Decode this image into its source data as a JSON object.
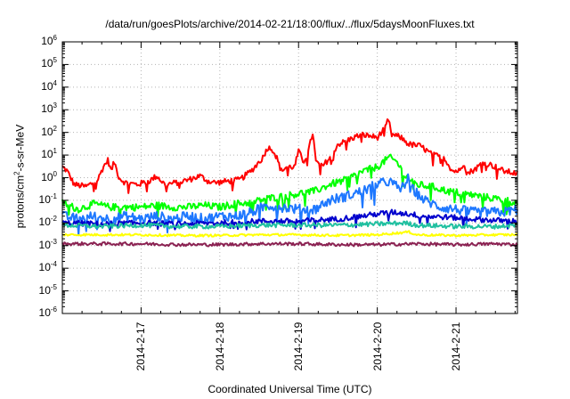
{
  "chart_data": {
    "type": "line",
    "title": "/data/run/goesPlots/archive/2014-02-21/18:00/flux/../flux/5daysMoonFluxes.txt",
    "xlabel": "Coordinated Universal Time (UTC)",
    "ylabel": {
      "pre": "protons/cm",
      "sup": "2",
      "post": "-s-sr-MeV"
    },
    "yscale": "log",
    "ylim": [
      1e-06,
      1000000.0
    ],
    "xlim": [
      16.0,
      21.78
    ],
    "y_ticks": [
      {
        "base": "10",
        "exp": "-6"
      },
      {
        "base": "10",
        "exp": "-5"
      },
      {
        "base": "10",
        "exp": "-4"
      },
      {
        "base": "10",
        "exp": "-3"
      },
      {
        "base": "10",
        "exp": "-2"
      },
      {
        "base": "10",
        "exp": "-1"
      },
      {
        "base": "10",
        "exp": "0"
      },
      {
        "base": "10",
        "exp": "1"
      },
      {
        "base": "10",
        "exp": "2"
      },
      {
        "base": "10",
        "exp": "3"
      },
      {
        "base": "10",
        "exp": "4"
      },
      {
        "base": "10",
        "exp": "5"
      },
      {
        "base": "10",
        "exp": "6"
      }
    ],
    "x_ticks": [
      {
        "label": "2014-2-17",
        "value": 17
      },
      {
        "label": "2014-2-18",
        "value": 18
      },
      {
        "label": "2014-2-19",
        "value": 19
      },
      {
        "label": "2014-2-20",
        "value": 20
      },
      {
        "label": "2014-2-21",
        "value": 21
      }
    ],
    "grid": true,
    "series": [
      {
        "color": "#ff0000",
        "noise": 0.13,
        "points": [
          [
            16.0,
            3
          ],
          [
            16.06,
            2
          ],
          [
            16.15,
            0.5
          ],
          [
            16.3,
            0.4
          ],
          [
            16.45,
            0.8
          ],
          [
            16.52,
            3
          ],
          [
            16.58,
            6
          ],
          [
            16.62,
            2
          ],
          [
            16.66,
            5
          ],
          [
            16.72,
            1
          ],
          [
            16.8,
            0.6
          ],
          [
            16.95,
            0.5
          ],
          [
            17.1,
            0.7
          ],
          [
            17.2,
            1.2
          ],
          [
            17.3,
            0.5
          ],
          [
            17.45,
            0.6
          ],
          [
            17.6,
            0.8
          ],
          [
            17.75,
            1.2
          ],
          [
            17.85,
            0.7
          ],
          [
            17.95,
            0.6
          ],
          [
            18.1,
            0.7
          ],
          [
            18.25,
            0.8
          ],
          [
            18.4,
            2
          ],
          [
            18.55,
            8
          ],
          [
            18.6,
            20
          ],
          [
            18.66,
            20
          ],
          [
            18.72,
            8
          ],
          [
            18.78,
            2
          ],
          [
            18.85,
            3
          ],
          [
            18.95,
            3
          ],
          [
            19.0,
            15
          ],
          [
            19.06,
            5
          ],
          [
            19.12,
            12
          ],
          [
            19.18,
            100
          ],
          [
            19.22,
            5
          ],
          [
            19.3,
            3
          ],
          [
            19.4,
            8
          ],
          [
            19.5,
            30
          ],
          [
            19.6,
            40
          ],
          [
            19.7,
            60
          ],
          [
            19.8,
            80
          ],
          [
            19.9,
            70
          ],
          [
            20.0,
            60
          ],
          [
            20.1,
            150
          ],
          [
            20.14,
            400
          ],
          [
            20.18,
            80
          ],
          [
            20.3,
            60
          ],
          [
            20.4,
            30
          ],
          [
            20.55,
            25
          ],
          [
            20.7,
            10
          ],
          [
            20.85,
            8
          ],
          [
            20.95,
            2
          ],
          [
            21.05,
            2
          ],
          [
            21.1,
            5
          ],
          [
            21.14,
            1.5
          ],
          [
            21.25,
            2.5
          ],
          [
            21.35,
            5
          ],
          [
            21.5,
            3
          ],
          [
            21.6,
            2
          ],
          [
            21.78,
            1.5
          ]
        ]
      },
      {
        "color": "#00ff00",
        "noise": 0.16,
        "points": [
          [
            16.0,
            0.08
          ],
          [
            16.2,
            0.04
          ],
          [
            16.4,
            0.07
          ],
          [
            16.6,
            0.05
          ],
          [
            16.8,
            0.05
          ],
          [
            17.0,
            0.05
          ],
          [
            17.2,
            0.06
          ],
          [
            17.4,
            0.05
          ],
          [
            17.6,
            0.05
          ],
          [
            17.8,
            0.06
          ],
          [
            18.0,
            0.05
          ],
          [
            18.2,
            0.07
          ],
          [
            18.4,
            0.08
          ],
          [
            18.6,
            0.12
          ],
          [
            18.8,
            0.15
          ],
          [
            19.0,
            0.2
          ],
          [
            19.2,
            0.25
          ],
          [
            19.4,
            0.5
          ],
          [
            19.6,
            0.8
          ],
          [
            19.8,
            1.8
          ],
          [
            20.0,
            3
          ],
          [
            20.15,
            8
          ],
          [
            20.25,
            5
          ],
          [
            20.35,
            1.2
          ],
          [
            20.5,
            0.5
          ],
          [
            20.7,
            0.4
          ],
          [
            20.9,
            0.25
          ],
          [
            21.1,
            0.2
          ],
          [
            21.3,
            0.15
          ],
          [
            21.5,
            0.12
          ],
          [
            21.78,
            0.08
          ]
        ]
      },
      {
        "color": "#1e78ff",
        "noise": 0.22,
        "points": [
          [
            16.0,
            0.02
          ],
          [
            16.2,
            0.015
          ],
          [
            16.4,
            0.02
          ],
          [
            16.6,
            0.015
          ],
          [
            16.8,
            0.02
          ],
          [
            17.0,
            0.015
          ],
          [
            17.2,
            0.02
          ],
          [
            17.4,
            0.015
          ],
          [
            17.6,
            0.02
          ],
          [
            17.8,
            0.015
          ],
          [
            18.0,
            0.02
          ],
          [
            18.2,
            0.02
          ],
          [
            18.4,
            0.03
          ],
          [
            18.6,
            0.06
          ],
          [
            18.8,
            0.05
          ],
          [
            19.0,
            0.04
          ],
          [
            19.2,
            0.04
          ],
          [
            19.4,
            0.1
          ],
          [
            19.6,
            0.15
          ],
          [
            19.8,
            0.25
          ],
          [
            20.0,
            0.5
          ],
          [
            20.15,
            0.7
          ],
          [
            20.3,
            0.3
          ],
          [
            20.4,
            1.0
          ],
          [
            20.45,
            0.3
          ],
          [
            20.6,
            0.1
          ],
          [
            20.8,
            0.05
          ],
          [
            21.0,
            0.04
          ],
          [
            21.2,
            0.03
          ],
          [
            21.4,
            0.03
          ],
          [
            21.6,
            0.03
          ],
          [
            21.78,
            0.04
          ]
        ]
      },
      {
        "color": "#0000cd",
        "noise": 0.12,
        "points": [
          [
            16.0,
            0.01
          ],
          [
            16.5,
            0.009
          ],
          [
            17.0,
            0.01
          ],
          [
            17.5,
            0.009
          ],
          [
            18.0,
            0.01
          ],
          [
            18.5,
            0.012
          ],
          [
            19.0,
            0.012
          ],
          [
            19.5,
            0.015
          ],
          [
            19.8,
            0.02
          ],
          [
            20.0,
            0.025
          ],
          [
            20.2,
            0.03
          ],
          [
            20.4,
            0.025
          ],
          [
            20.6,
            0.02
          ],
          [
            20.9,
            0.018
          ],
          [
            21.2,
            0.015
          ],
          [
            21.5,
            0.013
          ],
          [
            21.78,
            0.012
          ]
        ]
      },
      {
        "color": "#20c0a0",
        "noise": 0.1,
        "points": [
          [
            16.0,
            0.008
          ],
          [
            16.5,
            0.007
          ],
          [
            17.0,
            0.008
          ],
          [
            17.5,
            0.007
          ],
          [
            18.0,
            0.007
          ],
          [
            18.5,
            0.008
          ],
          [
            19.0,
            0.008
          ],
          [
            19.5,
            0.008
          ],
          [
            20.0,
            0.009
          ],
          [
            20.35,
            0.01
          ],
          [
            20.5,
            0.008
          ],
          [
            21.0,
            0.007
          ],
          [
            21.5,
            0.007
          ],
          [
            21.78,
            0.008
          ]
        ]
      },
      {
        "color": "#ffff00",
        "noise": 0.05,
        "points": [
          [
            16.0,
            0.003
          ],
          [
            16.5,
            0.003
          ],
          [
            17.0,
            0.003
          ],
          [
            17.5,
            0.0028
          ],
          [
            18.0,
            0.0028
          ],
          [
            18.5,
            0.003
          ],
          [
            19.0,
            0.003
          ],
          [
            19.5,
            0.0028
          ],
          [
            20.0,
            0.003
          ],
          [
            20.4,
            0.004
          ],
          [
            20.5,
            0.003
          ],
          [
            21.0,
            0.0028
          ],
          [
            21.5,
            0.003
          ],
          [
            21.78,
            0.003
          ]
        ]
      },
      {
        "color": "#8b2252",
        "noise": 0.07,
        "points": [
          [
            16.0,
            0.0012
          ],
          [
            16.5,
            0.0012
          ],
          [
            17.0,
            0.0012
          ],
          [
            17.5,
            0.0011
          ],
          [
            18.0,
            0.0011
          ],
          [
            18.5,
            0.0012
          ],
          [
            19.0,
            0.0012
          ],
          [
            19.5,
            0.0011
          ],
          [
            20.0,
            0.0011
          ],
          [
            20.5,
            0.0012
          ],
          [
            21.0,
            0.0011
          ],
          [
            21.5,
            0.0012
          ],
          [
            21.78,
            0.0011
          ]
        ]
      }
    ]
  }
}
